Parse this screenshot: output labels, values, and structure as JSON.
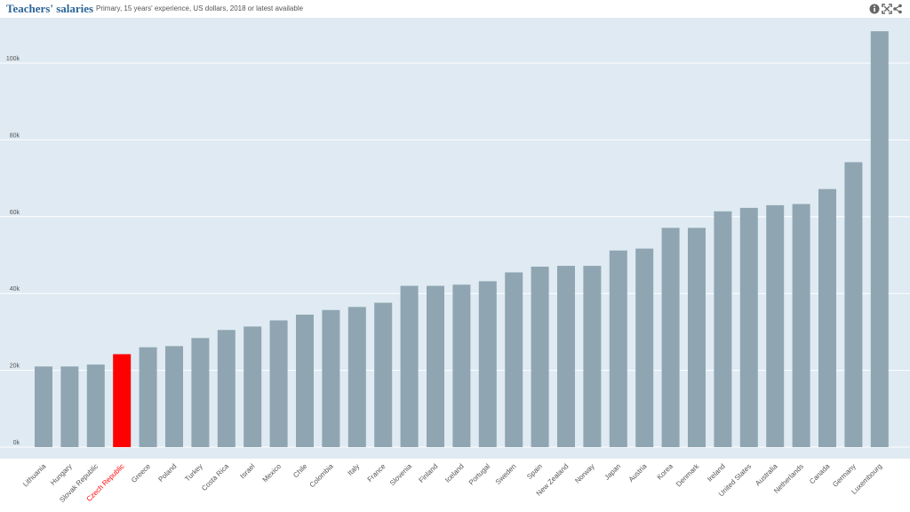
{
  "header": {
    "title": "Teachers' salaries",
    "subtitle": "Primary, 15 years' experience, US dollars, 2018 or latest available",
    "icons": [
      "info-icon",
      "fullscreen-icon",
      "share-icon"
    ]
  },
  "colors": {
    "plot_background": "#dfeaf2",
    "bar": "#8fa6b2",
    "highlight": "#ff0000",
    "grid": "#ffffff",
    "tick_text": "#555555"
  },
  "chart_data": {
    "type": "bar",
    "title": "Teachers' salaries",
    "subtitle": "Primary, 15 years' experience, US dollars, 2018 or latest available",
    "xlabel": "",
    "ylabel": "",
    "ylim": [
      0,
      112000
    ],
    "yticks": [
      0,
      20000,
      40000,
      60000,
      80000,
      100000
    ],
    "ytick_labels": [
      "0k",
      "20k",
      "40k",
      "60k",
      "80k",
      "100k"
    ],
    "grid": true,
    "highlight": "Czech Republic",
    "categories": [
      "Lithuania",
      "Hungary",
      "Slovak Republic",
      "Czech Republic",
      "Greece",
      "Poland",
      "Turkey",
      "Costa Rica",
      "Israel",
      "Mexico",
      "Chile",
      "Colombia",
      "Italy",
      "France",
      "Slovenia",
      "Finland",
      "Iceland",
      "Portugal",
      "Sweden",
      "Spain",
      "New Zealand",
      "Norway",
      "Japan",
      "Austria",
      "Korea",
      "Denmark",
      "Ireland",
      "United States",
      "Australia",
      "Netherlands",
      "Canada",
      "Germany",
      "Luxembourg"
    ],
    "values": [
      21000,
      21000,
      21500,
      24200,
      26000,
      26300,
      28400,
      30500,
      31400,
      33000,
      34500,
      35700,
      36500,
      37600,
      42000,
      42000,
      42300,
      43200,
      45500,
      47000,
      47200,
      47200,
      51200,
      51700,
      57100,
      57100,
      61400,
      62300,
      63000,
      63300,
      67200,
      74200,
      108300
    ]
  }
}
